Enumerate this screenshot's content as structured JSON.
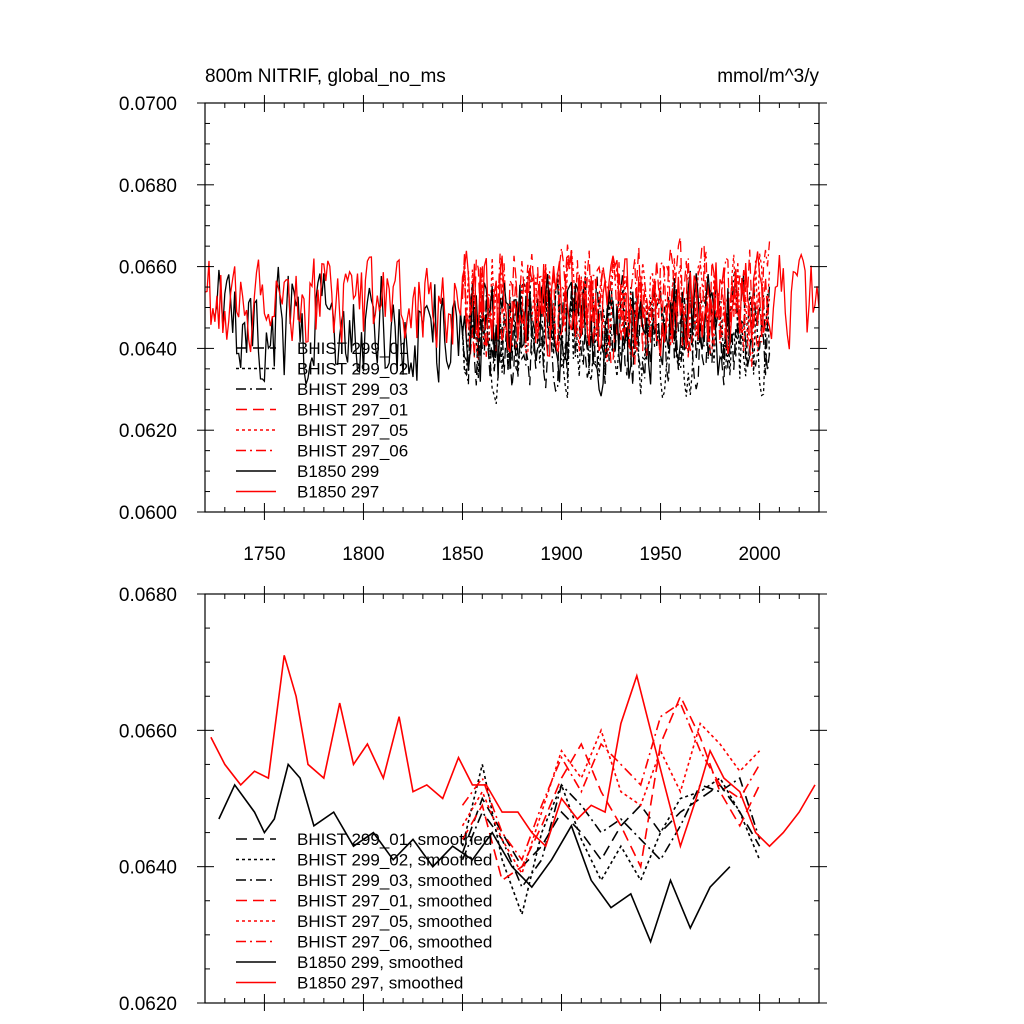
{
  "colors": {
    "black": "#000000",
    "red": "#ff0000"
  },
  "chart_data": [
    {
      "type": "line",
      "title_left": "800m NITRIF, global_no_ms",
      "title_right": "mmol/m^3/y",
      "xlim": [
        1720,
        2030
      ],
      "ylim": [
        0.06,
        0.07
      ],
      "x_ticks": [
        1750,
        1800,
        1850,
        1900,
        1950,
        2000
      ],
      "x_tick_labels": [
        "1750",
        "1800",
        "1850",
        "1900",
        "1950",
        "2000"
      ],
      "y_ticks": [
        0.06,
        0.062,
        0.064,
        0.066,
        0.068,
        0.07
      ],
      "y_tick_labels": [
        "0.0600",
        "0.0620",
        "0.0640",
        "0.0660",
        "0.0680",
        "0.0700"
      ],
      "grid": false,
      "legend_position": "bottom-left",
      "series": [
        {
          "name": "BHIST 299_01",
          "color": "#000000",
          "dash": "long-dash",
          "x_start": 1850,
          "x_end": 2005,
          "mean": 0.0644,
          "amplitude": 0.0012,
          "seed": 11
        },
        {
          "name": "BHIST 299_02",
          "color": "#000000",
          "dash": "dotted",
          "x_start": 1850,
          "x_end": 2005,
          "mean": 0.0643,
          "amplitude": 0.0013,
          "seed": 12
        },
        {
          "name": "BHIST 299_03",
          "color": "#000000",
          "dash": "dash-dot",
          "x_start": 1850,
          "x_end": 2005,
          "mean": 0.0645,
          "amplitude": 0.0012,
          "seed": 13
        },
        {
          "name": "BHIST 297_01",
          "color": "#ff0000",
          "dash": "long-dash",
          "x_start": 1850,
          "x_end": 2005,
          "mean": 0.0651,
          "amplitude": 0.0013,
          "seed": 14
        },
        {
          "name": "BHIST 297_05",
          "color": "#ff0000",
          "dash": "dotted",
          "x_start": 1850,
          "x_end": 2005,
          "mean": 0.0652,
          "amplitude": 0.0013,
          "seed": 15
        },
        {
          "name": "BHIST 297_06",
          "color": "#ff0000",
          "dash": "dash-dot",
          "x_start": 1850,
          "x_end": 2005,
          "mean": 0.0651,
          "amplitude": 0.0013,
          "seed": 16
        },
        {
          "name": "B1850 299",
          "color": "#000000",
          "dash": "solid",
          "x_start": 1725,
          "x_end": 1985,
          "mean": 0.0645,
          "amplitude": 0.0013,
          "seed": 17
        },
        {
          "name": "B1850 297",
          "color": "#ff0000",
          "dash": "solid",
          "x_start": 1720,
          "x_end": 2030,
          "mean": 0.0651,
          "amplitude": 0.0011,
          "seed": 18
        }
      ]
    },
    {
      "type": "line",
      "xlim": [
        1720,
        2030
      ],
      "ylim": [
        0.062,
        0.068
      ],
      "x_ticks": [
        1750,
        1800,
        1850,
        1900,
        1950,
        2000
      ],
      "y_ticks": [
        0.062,
        0.064,
        0.066,
        0.068
      ],
      "y_tick_labels": [
        "0.0620",
        "0.0640",
        "0.0660",
        "0.0680"
      ],
      "grid": false,
      "legend_position": "bottom-left",
      "series": [
        {
          "name": "BHIST 299_01, smoothed",
          "color": "#000000",
          "dash": "long-dash",
          "x": [
            1850,
            1860,
            1870,
            1880,
            1890,
            1900,
            1910,
            1920,
            1930,
            1940,
            1950,
            1960,
            1970,
            1980,
            1990,
            2000
          ],
          "y": [
            0.0642,
            0.065,
            0.0645,
            0.064,
            0.0643,
            0.0648,
            0.0645,
            0.0641,
            0.0646,
            0.0649,
            0.0645,
            0.0648,
            0.065,
            0.0652,
            0.0648,
            0.0643
          ]
        },
        {
          "name": "BHIST 299_02, smoothed",
          "color": "#000000",
          "dash": "dotted",
          "x": [
            1850,
            1860,
            1870,
            1880,
            1890,
            1900,
            1910,
            1920,
            1930,
            1940,
            1950,
            1960,
            1970,
            1980,
            1990,
            2000
          ],
          "y": [
            0.0643,
            0.0655,
            0.0641,
            0.0633,
            0.0645,
            0.0652,
            0.0644,
            0.0638,
            0.0643,
            0.0638,
            0.0645,
            0.065,
            0.0651,
            0.0653,
            0.0648,
            0.0641
          ]
        },
        {
          "name": "BHIST 299_03, smoothed",
          "color": "#000000",
          "dash": "dash-dot",
          "x": [
            1850,
            1860,
            1870,
            1880,
            1890,
            1900,
            1910,
            1920,
            1930,
            1940,
            1950,
            1960,
            1970,
            1980,
            1990,
            2000
          ],
          "y": [
            0.0641,
            0.0648,
            0.0644,
            0.0637,
            0.0641,
            0.0652,
            0.0649,
            0.0645,
            0.0647,
            0.0644,
            0.0641,
            0.0646,
            0.0652,
            0.0651,
            0.0653,
            0.0644
          ]
        },
        {
          "name": "BHIST 297_01, smoothed",
          "color": "#ff0000",
          "dash": "long-dash",
          "x": [
            1850,
            1860,
            1870,
            1880,
            1890,
            1900,
            1910,
            1920,
            1930,
            1940,
            1950,
            1960,
            1970,
            1980,
            1990,
            2000
          ],
          "y": [
            0.0644,
            0.0649,
            0.0638,
            0.064,
            0.0646,
            0.0653,
            0.0658,
            0.0651,
            0.0646,
            0.064,
            0.0658,
            0.0665,
            0.0659,
            0.0651,
            0.0646,
            0.0652
          ]
        },
        {
          "name": "BHIST 297_05, smoothed",
          "color": "#ff0000",
          "dash": "dotted",
          "x": [
            1850,
            1860,
            1870,
            1880,
            1890,
            1900,
            1910,
            1920,
            1930,
            1940,
            1950,
            1960,
            1970,
            1980,
            1990,
            2000
          ],
          "y": [
            0.0646,
            0.0651,
            0.0644,
            0.0639,
            0.0648,
            0.0657,
            0.0653,
            0.066,
            0.0651,
            0.0649,
            0.0657,
            0.0651,
            0.0661,
            0.0658,
            0.0654,
            0.0657
          ]
        },
        {
          "name": "BHIST 297_06, smoothed",
          "color": "#ff0000",
          "dash": "dash-dot",
          "x": [
            1850,
            1860,
            1870,
            1880,
            1890,
            1900,
            1910,
            1920,
            1930,
            1940,
            1950,
            1960,
            1970,
            1980,
            1990,
            2000
          ],
          "y": [
            0.0649,
            0.0653,
            0.0645,
            0.0641,
            0.0649,
            0.0656,
            0.0651,
            0.0658,
            0.0655,
            0.0652,
            0.0662,
            0.0664,
            0.0657,
            0.0652,
            0.065,
            0.0655
          ]
        },
        {
          "name": "B1850 299, smoothed",
          "color": "#000000",
          "dash": "solid",
          "x": [
            1727,
            1735,
            1745,
            1750,
            1755,
            1762,
            1768,
            1775,
            1785,
            1795,
            1805,
            1815,
            1825,
            1835,
            1845,
            1855,
            1865,
            1875,
            1885,
            1895,
            1905,
            1915,
            1925,
            1935,
            1945,
            1955,
            1965,
            1975,
            1985
          ],
          "y": [
            0.0647,
            0.0652,
            0.0648,
            0.0645,
            0.0647,
            0.0655,
            0.0653,
            0.0646,
            0.0648,
            0.0643,
            0.0645,
            0.0641,
            0.0644,
            0.064,
            0.0643,
            0.0641,
            0.0645,
            0.064,
            0.0637,
            0.0641,
            0.0646,
            0.0638,
            0.0634,
            0.0636,
            0.0629,
            0.0638,
            0.0631,
            0.0637,
            0.064
          ]
        },
        {
          "name": "B1850 297, smoothed",
          "color": "#ff0000",
          "dash": "solid",
          "x": [
            1723,
            1730,
            1738,
            1745,
            1752,
            1760,
            1766,
            1772,
            1780,
            1788,
            1795,
            1802,
            1810,
            1818,
            1825,
            1832,
            1840,
            1848,
            1855,
            1862,
            1870,
            1878,
            1885,
            1892,
            1900,
            1908,
            1915,
            1922,
            1930,
            1938,
            1945,
            1952,
            1960,
            1968,
            1975,
            1982,
            1990,
            1998,
            2005,
            2012,
            2020,
            2028
          ],
          "y": [
            0.0659,
            0.0655,
            0.0652,
            0.0654,
            0.0653,
            0.0671,
            0.0665,
            0.0655,
            0.0653,
            0.0664,
            0.0655,
            0.0658,
            0.0653,
            0.0662,
            0.0651,
            0.0652,
            0.065,
            0.0656,
            0.0652,
            0.0652,
            0.0648,
            0.0648,
            0.0645,
            0.0643,
            0.065,
            0.0647,
            0.0649,
            0.0648,
            0.0661,
            0.0668,
            0.066,
            0.0652,
            0.0643,
            0.065,
            0.0657,
            0.0653,
            0.0651,
            0.0645,
            0.0643,
            0.0645,
            0.0648,
            0.0652
          ]
        }
      ]
    }
  ]
}
